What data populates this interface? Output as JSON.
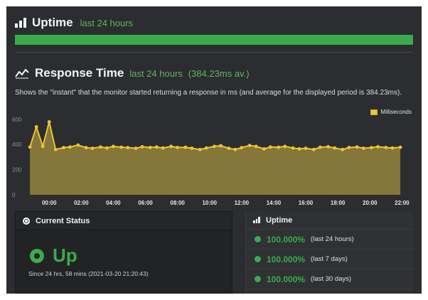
{
  "uptime": {
    "title": "Uptime",
    "period": "last 24 hours",
    "bar_color": "#3bab4c"
  },
  "response_time": {
    "title": "Response Time",
    "period": "last 24 hours",
    "average": "(384.23ms av.)",
    "description": "Shows the \"instant\" that the monitor started returning a response in ms (and average for the displayed period is 384.23ms)."
  },
  "chart_data": {
    "type": "area",
    "title": "",
    "xlabel": "",
    "ylabel": "",
    "ylim": [
      0,
      650
    ],
    "y_ticks": [
      "0",
      "200",
      "400",
      "600"
    ],
    "x_tick_labels": [
      "00:00",
      "02:00",
      "04:00",
      "06:00",
      "08:00",
      "10:00",
      "12:00",
      "14:00",
      "16:00",
      "18:00",
      "20:00",
      "22:00"
    ],
    "x_range": [
      -1.25,
      22.25
    ],
    "legend_position": "top-right",
    "grid": false,
    "series": [
      {
        "name": "Milliseconds",
        "color": "#f0c331",
        "fill": "#8a7a3a",
        "x": [
          -1.2,
          -0.8,
          -0.4,
          0.0,
          0.4,
          0.9,
          1.3,
          1.8,
          2.3,
          2.7,
          3.2,
          3.6,
          4.0,
          4.5,
          4.9,
          5.4,
          5.8,
          6.3,
          6.7,
          7.1,
          7.6,
          8.0,
          8.5,
          8.9,
          9.4,
          9.8,
          10.3,
          10.7,
          11.2,
          11.6,
          12.0,
          12.5,
          12.9,
          13.4,
          13.8,
          14.3,
          14.7,
          15.2,
          15.6,
          16.0,
          16.5,
          16.9,
          17.4,
          17.8,
          18.3,
          18.7,
          19.2,
          19.6,
          20.1,
          20.5,
          21.0,
          21.4,
          21.9
        ],
        "values": [
          380,
          540,
          385,
          580,
          360,
          375,
          380,
          395,
          375,
          370,
          380,
          372,
          385,
          378,
          375,
          370,
          382,
          376,
          380,
          372,
          385,
          376,
          378,
          370,
          360,
          372,
          385,
          390,
          370,
          360,
          375,
          392,
          385,
          365,
          380,
          378,
          385,
          372,
          365,
          370,
          360,
          378,
          382,
          372,
          360,
          376,
          380,
          370,
          375,
          382,
          376,
          372,
          378
        ]
      }
    ]
  },
  "current_status": {
    "title": "Current Status",
    "state": "Up",
    "since": "Since 24 hrs, 58 mins (2021-03-20 21:20:43)"
  },
  "uptime_summary": {
    "title": "Uptime",
    "rows": [
      {
        "percent": "100.000%",
        "period": "(last 24 hours)"
      },
      {
        "percent": "100.000%",
        "period": "(last 7 days)"
      },
      {
        "percent": "100.000%",
        "period": "(last 30 days)"
      }
    ]
  }
}
